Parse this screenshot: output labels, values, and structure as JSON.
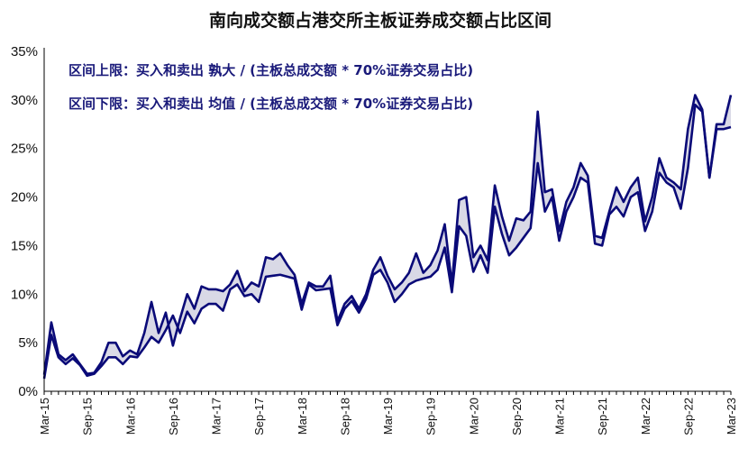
{
  "chart_data": {
    "type": "area",
    "title": "南向成交额占港交所主板证券成交额占比区间",
    "legend": [
      "区间上限：买入和卖出 孰大 / (主板总成交额 * 70%证券交易占比)",
      "区间下限：买入和卖出 均值 / (主板总成交额 * 70%证券交易占比)"
    ],
    "ylim": [
      0,
      35
    ],
    "yticks": [
      "0%",
      "5%",
      "10%",
      "15%",
      "20%",
      "25%",
      "30%",
      "35%"
    ],
    "xticks": [
      "Mar-15",
      "Sep-15",
      "Mar-16",
      "Sep-16",
      "Mar-17",
      "Sep-17",
      "Mar-18",
      "Sep-18",
      "Mar-19",
      "Sep-19",
      "Mar-20",
      "Sep-20",
      "Mar-21",
      "Sep-21",
      "Mar-22",
      "Sep-22",
      "Mar-23"
    ],
    "x": [
      "Mar-15",
      "Apr-15",
      "May-15",
      "Jun-15",
      "Jul-15",
      "Aug-15",
      "Sep-15",
      "Oct-15",
      "Nov-15",
      "Dec-15",
      "Jan-16",
      "Feb-16",
      "Mar-16",
      "Apr-16",
      "May-16",
      "Jun-16",
      "Jul-16",
      "Aug-16",
      "Sep-16",
      "Oct-16",
      "Nov-16",
      "Dec-16",
      "Jan-17",
      "Feb-17",
      "Mar-17",
      "Apr-17",
      "May-17",
      "Jun-17",
      "Jul-17",
      "Aug-17",
      "Sep-17",
      "Oct-17",
      "Nov-17",
      "Dec-17",
      "Jan-18",
      "Feb-18",
      "Mar-18",
      "Apr-18",
      "May-18",
      "Jun-18",
      "Jul-18",
      "Aug-18",
      "Sep-18",
      "Oct-18",
      "Nov-18",
      "Dec-18",
      "Jan-19",
      "Feb-19",
      "Mar-19",
      "Apr-19",
      "May-19",
      "Jun-19",
      "Jul-19",
      "Aug-19",
      "Sep-19",
      "Oct-19",
      "Nov-19",
      "Dec-19",
      "Jan-20",
      "Feb-20",
      "Mar-20",
      "Apr-20",
      "May-20",
      "Jun-20",
      "Jul-20",
      "Aug-20",
      "Sep-20",
      "Oct-20",
      "Nov-20",
      "Dec-20",
      "Jan-21",
      "Feb-21",
      "Mar-21",
      "Apr-21",
      "May-21",
      "Jun-21",
      "Jul-21",
      "Aug-21",
      "Sep-21",
      "Oct-21",
      "Nov-21",
      "Dec-21",
      "Jan-22",
      "Feb-22",
      "Mar-22",
      "Apr-22",
      "May-22",
      "Jun-22",
      "Jul-22",
      "Aug-22",
      "Sep-22",
      "Oct-22",
      "Nov-22",
      "Dec-22",
      "Jan-23",
      "Feb-23",
      "Mar-23"
    ],
    "series": [
      {
        "name": "区间上限：买入和卖出 孰大 / (主板总成交额 * 70%证券交易占比)",
        "color": "#0a0a78",
        "values": [
          1.7,
          7.1,
          3.8,
          3.2,
          3.8,
          2.8,
          1.8,
          1.9,
          3.0,
          5.0,
          5.0,
          3.6,
          4.2,
          3.8,
          6.0,
          9.2,
          6.0,
          8.1,
          4.7,
          7.5,
          10.0,
          8.5,
          10.8,
          10.5,
          10.5,
          10.3,
          11.0,
          12.4,
          10.3,
          11.2,
          10.8,
          13.8,
          13.6,
          14.2,
          13.0,
          12.0,
          9.0,
          11.2,
          10.8,
          10.8,
          11.9,
          7.2,
          9.0,
          9.8,
          8.5,
          10.0,
          12.5,
          13.8,
          11.9,
          10.5,
          11.2,
          12.2,
          14.2,
          12.2,
          13.0,
          14.5,
          17.2,
          11.0,
          19.7,
          20.0,
          13.8,
          15.0,
          13.5,
          21.2,
          18.0,
          15.5,
          17.8,
          17.6,
          18.5,
          28.8,
          20.5,
          20.8,
          16.5,
          19.5,
          21.0,
          23.5,
          22.2,
          16.0,
          15.8,
          18.5,
          21.0,
          19.5,
          21.0,
          22.0,
          17.5,
          20.0,
          24.0,
          22.0,
          21.5,
          20.8,
          27.0,
          30.5,
          29.0,
          22.0,
          27.5,
          27.5,
          30.5
        ]
      },
      {
        "name": "区间下限：买入和卖出 均值 / (主板总成交额 * 70%证券交易占比)",
        "color": "#0a0a78",
        "values": [
          1.3,
          5.8,
          3.5,
          2.8,
          3.4,
          2.7,
          1.6,
          1.8,
          2.6,
          3.5,
          3.5,
          2.8,
          3.6,
          3.5,
          4.5,
          5.6,
          5.0,
          6.3,
          7.8,
          6.0,
          8.2,
          7.0,
          8.5,
          9.0,
          9.0,
          8.3,
          10.5,
          11.0,
          9.8,
          10.0,
          9.2,
          11.8,
          11.9,
          12.0,
          11.8,
          11.6,
          8.4,
          11.0,
          10.4,
          10.5,
          10.6,
          6.8,
          8.5,
          9.3,
          8.1,
          9.5,
          12.0,
          12.5,
          11.2,
          9.2,
          10.0,
          11.0,
          11.4,
          11.6,
          11.8,
          12.5,
          14.8,
          10.2,
          17.0,
          16.0,
          12.3,
          14.0,
          12.2,
          19.0,
          16.2,
          14.0,
          14.8,
          15.8,
          16.8,
          23.5,
          18.5,
          20.0,
          15.5,
          18.5,
          20.0,
          22.0,
          21.5,
          15.2,
          15.0,
          18.2,
          19.0,
          18.0,
          20.0,
          20.5,
          16.5,
          18.5,
          22.5,
          21.5,
          21.0,
          18.8,
          23.0,
          29.5,
          28.8,
          22.0,
          27.0,
          27.0,
          27.2
        ]
      }
    ],
    "fill_color": "#d9d9e6"
  }
}
